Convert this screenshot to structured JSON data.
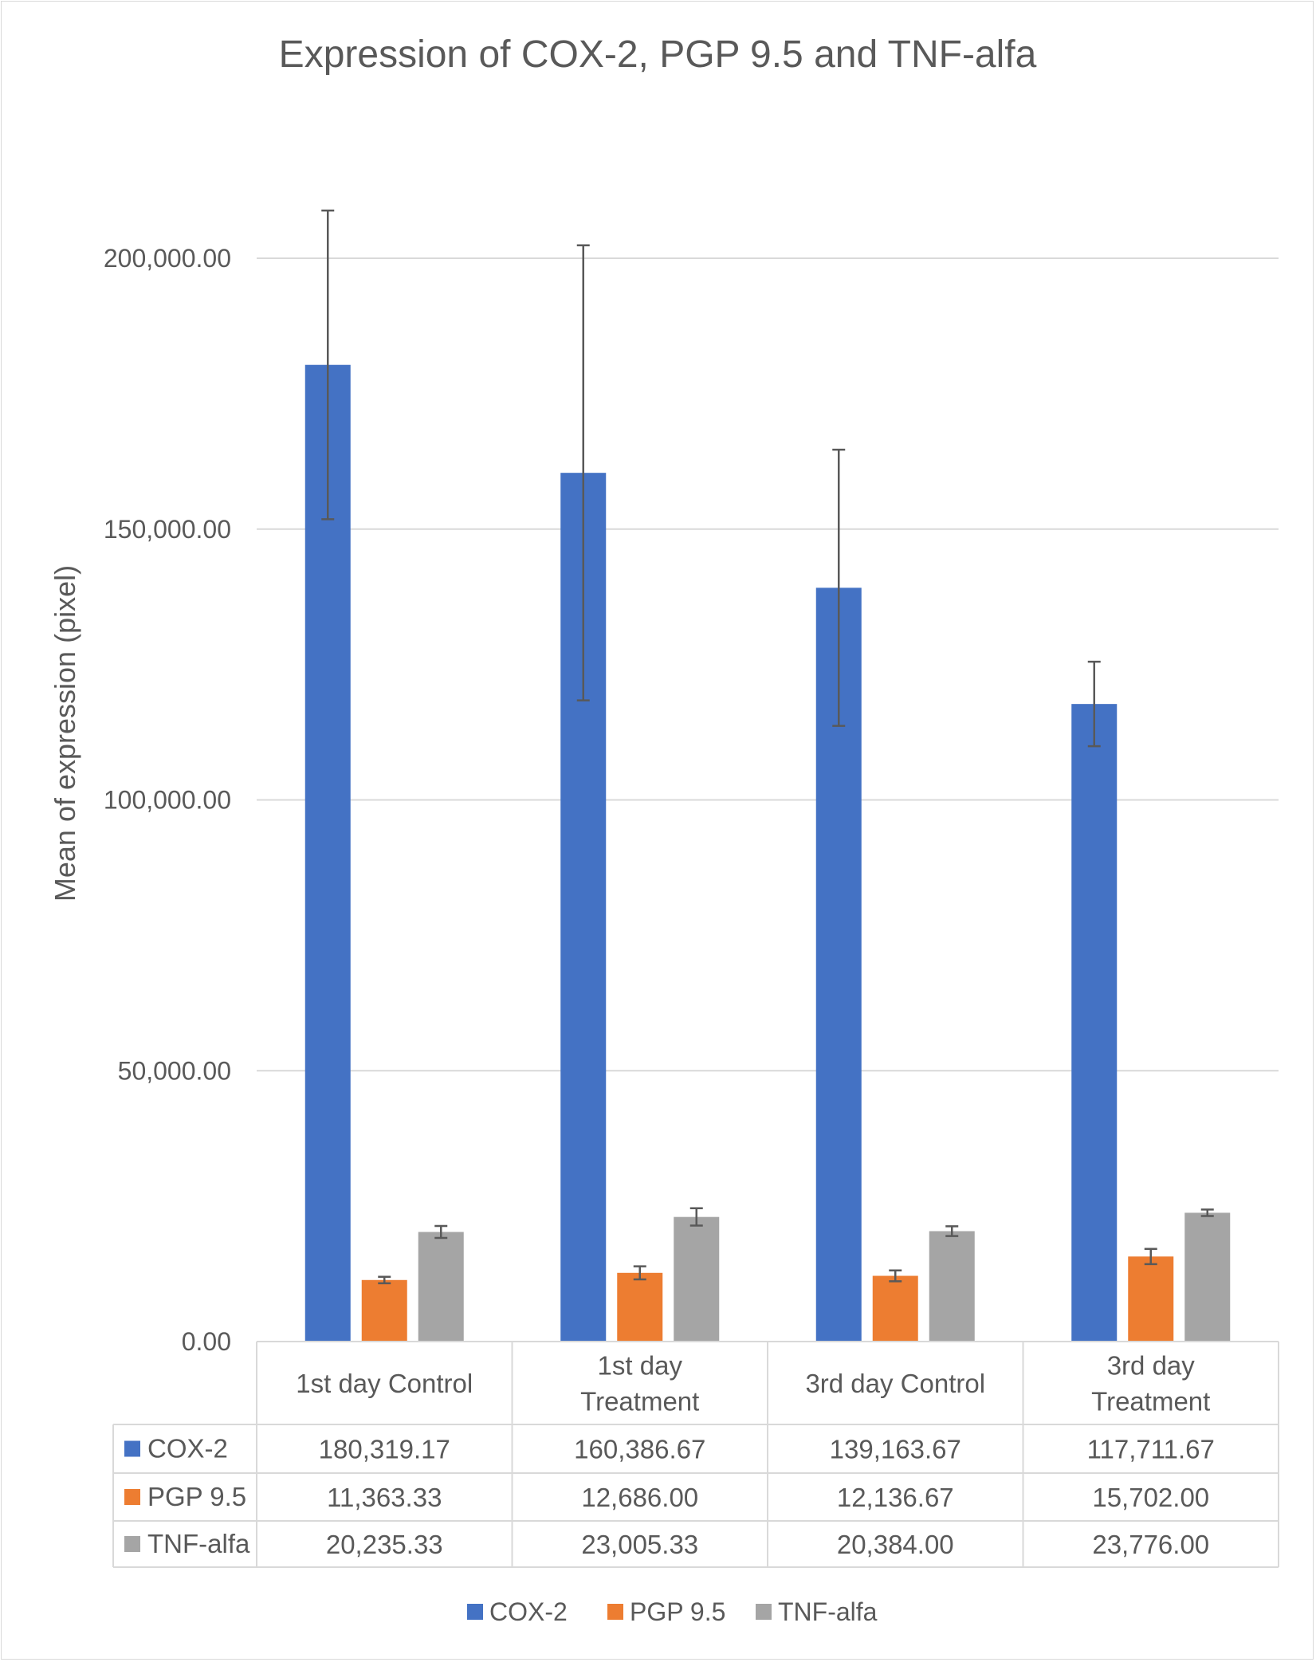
{
  "chart_data": {
    "type": "bar",
    "title": "Expression of COX-2, PGP 9.5 and TNF-alfa",
    "xlabel": "",
    "ylabel": "Mean of expression (pixel)",
    "ylim": [
      0,
      200000
    ],
    "yticks": [
      0,
      50000,
      100000,
      150000,
      200000
    ],
    "ytick_labels": [
      "0.00",
      "50,000.00",
      "100,000.00",
      "150,000.00",
      "200,000.00"
    ],
    "grid": true,
    "legend_position": "bottom",
    "categories": [
      [
        "1st day Control"
      ],
      [
        "1st day",
        "Treatment"
      ],
      [
        "3rd day Control"
      ],
      [
        "3rd day",
        "Treatment"
      ]
    ],
    "series": [
      {
        "name": "COX-2",
        "color": "#4472c4",
        "values": [
          180319.17,
          160386.67,
          139163.67,
          117711.67
        ],
        "labels": [
          "180,319.17",
          "160,386.67",
          "139,163.67",
          "117,711.67"
        ],
        "error": [
          28500,
          42000,
          25500,
          7800
        ]
      },
      {
        "name": "PGP 9.5",
        "color": "#ed7d31",
        "values": [
          11363.33,
          12686.0,
          12136.67,
          15702.0
        ],
        "labels": [
          "11,363.33",
          "12,686.00",
          "12,136.67",
          "15,702.00"
        ],
        "error": [
          600,
          1200,
          1000,
          1400
        ]
      },
      {
        "name": "TNF-alfa",
        "color": "#a5a5a5",
        "values": [
          20235.33,
          23005.33,
          20384.0,
          23776.0
        ],
        "labels": [
          "20,235.33",
          "23,005.33",
          "20,384.00",
          "23,776.00"
        ],
        "error": [
          1100,
          1600,
          900,
          600
        ]
      }
    ],
    "data_table": true
  }
}
